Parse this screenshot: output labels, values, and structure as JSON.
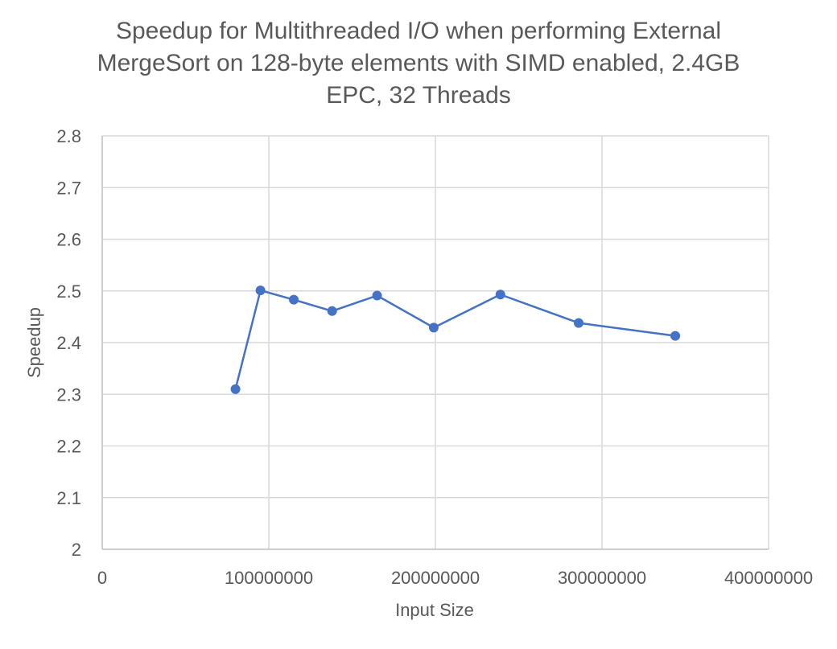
{
  "chart_data": {
    "type": "scatter",
    "title_lines": [
      "Speedup for Multithreaded I/O when performing External",
      "MergeSort on 128-byte elements with SIMD enabled, 2.4GB",
      "EPC, 32 Threads"
    ],
    "xlabel": "Input Size",
    "ylabel": "Speedup",
    "xlim": [
      0,
      400000000
    ],
    "ylim": [
      2,
      2.8
    ],
    "x_ticks": [
      0,
      100000000,
      200000000,
      300000000,
      400000000
    ],
    "x_tick_labels": [
      "0",
      "100000000",
      "200000000",
      "300000000",
      "400000000"
    ],
    "y_ticks": [
      2,
      2.1,
      2.2,
      2.3,
      2.4,
      2.5,
      2.6,
      2.7,
      2.8
    ],
    "y_tick_labels": [
      "2",
      "2.1",
      "2.2",
      "2.3",
      "2.4",
      "2.5",
      "2.6",
      "2.7",
      "2.8"
    ],
    "grid": true,
    "legend": "none",
    "series": [
      {
        "color": "#4472c4",
        "markers": true,
        "lines": true,
        "x": [
          80000000,
          95000000,
          115000000,
          138000000,
          165000000,
          199000000,
          239000000,
          286000000,
          344000000
        ],
        "y": [
          2.31,
          2.501,
          2.483,
          2.461,
          2.491,
          2.429,
          2.493,
          2.438,
          2.413
        ]
      }
    ]
  }
}
